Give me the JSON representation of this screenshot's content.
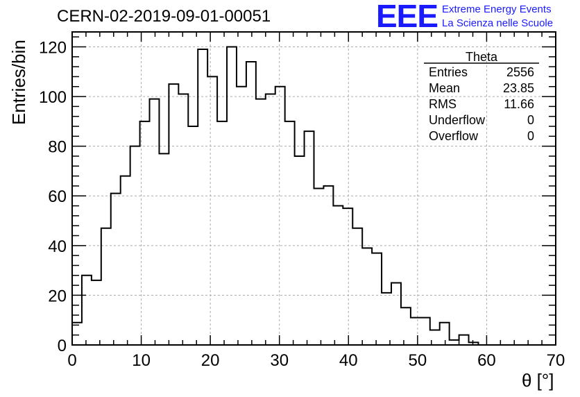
{
  "header": {
    "title": "CERN-02-2019-09-01-00051",
    "logo_text": "EEE",
    "logo_line1": "Extreme Energy Events",
    "logo_line2": "La Scienza nelle Scuole"
  },
  "stats": {
    "title": "Theta",
    "rows": [
      {
        "label": "Entries",
        "value": "2556"
      },
      {
        "label": "Mean",
        "value": "23.85"
      },
      {
        "label": "RMS",
        "value": "11.66"
      },
      {
        "label": "Underflow",
        "value": "0"
      },
      {
        "label": "Overflow",
        "value": "0"
      }
    ]
  },
  "colors": {
    "logo": "#1a1aff",
    "line": "#000000",
    "grid": "#aaaaaa"
  },
  "chart_data": {
    "type": "bar",
    "histogram": true,
    "xlabel": "θ [°]",
    "ylabel": "Entries/bin",
    "xlim": [
      0,
      70
    ],
    "ylim": [
      0,
      126
    ],
    "bin_width": 1.4,
    "x_ticks": [
      0,
      10,
      20,
      30,
      40,
      50,
      60,
      70
    ],
    "y_ticks": [
      0,
      20,
      40,
      60,
      80,
      100,
      120
    ],
    "grid": true,
    "legend": "top-right",
    "values": [
      9,
      28,
      26,
      47,
      61,
      68,
      80,
      90,
      99,
      77,
      105,
      101,
      88,
      119,
      108,
      90,
      120,
      104,
      114,
      99,
      101,
      104,
      90,
      76,
      86,
      63,
      64,
      56,
      55,
      47,
      39,
      37,
      21,
      25,
      15,
      11,
      11,
      6,
      9,
      2,
      4,
      1,
      0,
      0,
      0,
      0,
      0,
      0,
      0,
      0
    ]
  }
}
